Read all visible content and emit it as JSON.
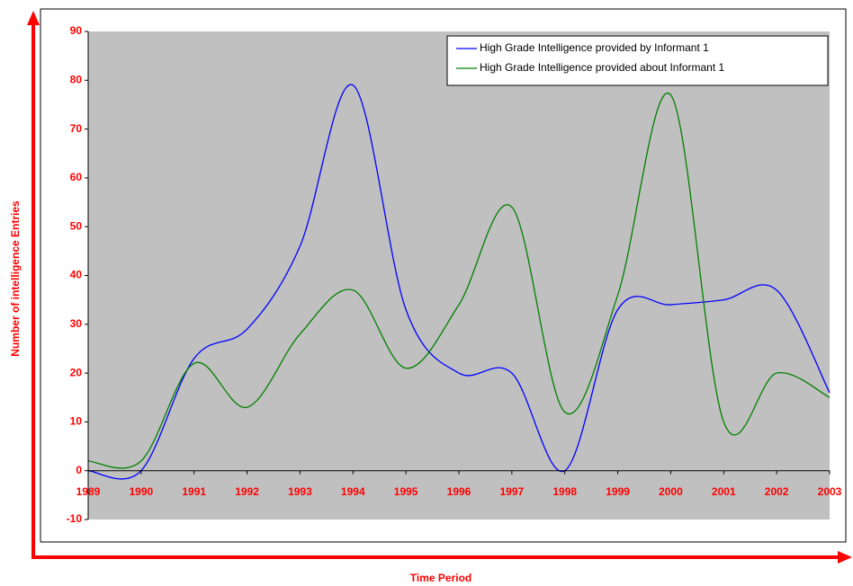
{
  "chart_data": {
    "type": "line",
    "x_label": "Time Period",
    "y_label": "Number of intelligence Entries",
    "x": [
      1989,
      1990,
      1991,
      1992,
      1993,
      1994,
      1995,
      1996,
      1997,
      1998,
      1999,
      2000,
      2001,
      2002,
      2003
    ],
    "series": [
      {
        "name": "High Grade Intelligence provided by Informant 1",
        "color": "#0000ff",
        "values": [
          0,
          0,
          23,
          29,
          46,
          79,
          33,
          20,
          20,
          0,
          33,
          34,
          35,
          37,
          16
        ]
      },
      {
        "name": "High Grade Intelligence provided about Informant 1",
        "color": "#008000",
        "values": [
          2,
          2,
          22,
          13,
          28,
          37,
          21,
          34,
          54,
          12,
          36,
          77,
          10,
          20,
          15
        ]
      }
    ],
    "xlim": [
      1989,
      2003
    ],
    "xticks": [
      1989,
      1990,
      1991,
      1992,
      1993,
      1994,
      1995,
      1996,
      1997,
      1998,
      1999,
      2000,
      2001,
      2002,
      2003
    ],
    "ylim": [
      -10,
      90
    ],
    "yticks": [
      -10,
      0,
      10,
      20,
      30,
      40,
      50,
      60,
      70,
      80,
      90
    ],
    "smooth": true,
    "legend": "upper right",
    "plot_background": "#c0c0c0",
    "label_color": "#ff0000"
  }
}
